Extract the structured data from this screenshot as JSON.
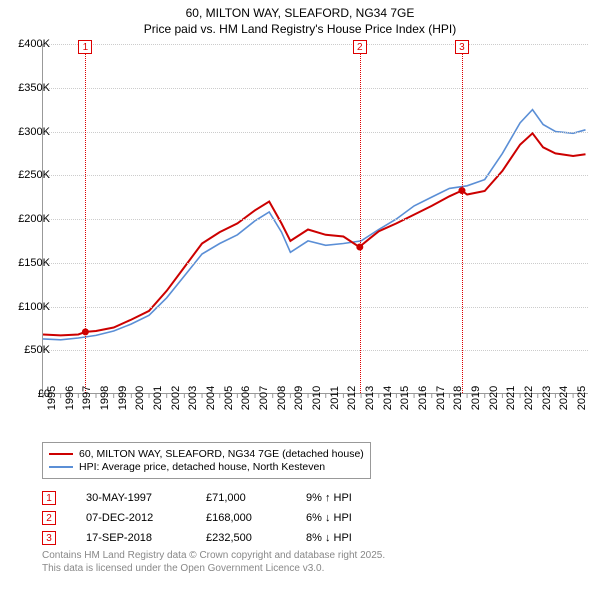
{
  "title": {
    "line1": "60, MILTON WAY, SLEAFORD, NG34 7GE",
    "line2": "Price paid vs. HM Land Registry's House Price Index (HPI)"
  },
  "chart": {
    "type": "line",
    "x_range": [
      1995,
      2025.9
    ],
    "y_range": [
      0,
      400000
    ],
    "y_ticks": [
      0,
      50000,
      100000,
      150000,
      200000,
      250000,
      300000,
      350000,
      400000
    ],
    "y_tick_labels": [
      "£0",
      "£50K",
      "£100K",
      "£150K",
      "£200K",
      "£250K",
      "£300K",
      "£350K",
      "£400K"
    ],
    "x_ticks": [
      1995,
      1996,
      1997,
      1998,
      1999,
      2000,
      2001,
      2002,
      2003,
      2004,
      2005,
      2006,
      2007,
      2008,
      2009,
      2010,
      2011,
      2012,
      2013,
      2014,
      2015,
      2016,
      2017,
      2018,
      2019,
      2020,
      2021,
      2022,
      2023,
      2024,
      2025
    ],
    "background_color": "#ffffff",
    "grid_color": "#cccccc",
    "axis_color": "#999999",
    "series": [
      {
        "name": "red",
        "color": "#cc0000",
        "width": 2,
        "points": [
          [
            1995.0,
            68000
          ],
          [
            1996.0,
            67000
          ],
          [
            1997.0,
            68000
          ],
          [
            1997.4,
            71000
          ],
          [
            1998.0,
            72000
          ],
          [
            1999.0,
            76000
          ],
          [
            2000.0,
            85000
          ],
          [
            2001.0,
            95000
          ],
          [
            2002.0,
            118000
          ],
          [
            2003.0,
            145000
          ],
          [
            2004.0,
            172000
          ],
          [
            2005.0,
            185000
          ],
          [
            2006.0,
            195000
          ],
          [
            2007.0,
            210000
          ],
          [
            2007.8,
            220000
          ],
          [
            2008.5,
            195000
          ],
          [
            2009.0,
            175000
          ],
          [
            2010.0,
            188000
          ],
          [
            2011.0,
            182000
          ],
          [
            2012.0,
            180000
          ],
          [
            2012.9,
            168000
          ],
          [
            2013.5,
            178000
          ],
          [
            2014.0,
            186000
          ],
          [
            2015.0,
            195000
          ],
          [
            2016.0,
            205000
          ],
          [
            2017.0,
            215000
          ],
          [
            2018.0,
            226000
          ],
          [
            2018.7,
            232500
          ],
          [
            2019.0,
            228000
          ],
          [
            2020.0,
            232000
          ],
          [
            2021.0,
            255000
          ],
          [
            2022.0,
            285000
          ],
          [
            2022.7,
            298000
          ],
          [
            2023.3,
            282000
          ],
          [
            2024.0,
            275000
          ],
          [
            2025.0,
            272000
          ],
          [
            2025.7,
            274000
          ]
        ]
      },
      {
        "name": "blue",
        "color": "#5b8fd6",
        "width": 1.6,
        "points": [
          [
            1995.0,
            63000
          ],
          [
            1996.0,
            62000
          ],
          [
            1997.0,
            64000
          ],
          [
            1998.0,
            67000
          ],
          [
            1999.0,
            72000
          ],
          [
            2000.0,
            80000
          ],
          [
            2001.0,
            90000
          ],
          [
            2002.0,
            110000
          ],
          [
            2003.0,
            135000
          ],
          [
            2004.0,
            160000
          ],
          [
            2005.0,
            172000
          ],
          [
            2006.0,
            182000
          ],
          [
            2007.0,
            198000
          ],
          [
            2007.8,
            208000
          ],
          [
            2008.5,
            185000
          ],
          [
            2009.0,
            162000
          ],
          [
            2010.0,
            175000
          ],
          [
            2011.0,
            170000
          ],
          [
            2012.0,
            172000
          ],
          [
            2013.0,
            175000
          ],
          [
            2014.0,
            188000
          ],
          [
            2015.0,
            200000
          ],
          [
            2016.0,
            215000
          ],
          [
            2017.0,
            225000
          ],
          [
            2018.0,
            235000
          ],
          [
            2019.0,
            238000
          ],
          [
            2020.0,
            245000
          ],
          [
            2021.0,
            275000
          ],
          [
            2022.0,
            310000
          ],
          [
            2022.7,
            325000
          ],
          [
            2023.3,
            308000
          ],
          [
            2024.0,
            300000
          ],
          [
            2025.0,
            298000
          ],
          [
            2025.7,
            302000
          ]
        ]
      }
    ],
    "markers": [
      {
        "id": "1",
        "x": 1997.4,
        "y": 71000
      },
      {
        "id": "2",
        "x": 2012.93,
        "y": 168000
      },
      {
        "id": "3",
        "x": 2018.71,
        "y": 232500
      }
    ]
  },
  "legend": {
    "red_label": "60, MILTON WAY, SLEAFORD, NG34 7GE (detached house)",
    "blue_label": "HPI: Average price, detached house, North Kesteven"
  },
  "transactions": [
    {
      "id": "1",
      "date": "30-MAY-1997",
      "price": "£71,000",
      "delta": "9% ↑ HPI"
    },
    {
      "id": "2",
      "date": "07-DEC-2012",
      "price": "£168,000",
      "delta": "6% ↓ HPI"
    },
    {
      "id": "3",
      "date": "17-SEP-2018",
      "price": "£232,500",
      "delta": "8% ↓ HPI"
    }
  ],
  "attribution": {
    "line1": "Contains HM Land Registry data © Crown copyright and database right 2025.",
    "line2": "This data is licensed under the Open Government Licence v3.0."
  },
  "colors": {
    "marker_red": "#cc0000",
    "text": "#000000",
    "muted": "#888888"
  }
}
